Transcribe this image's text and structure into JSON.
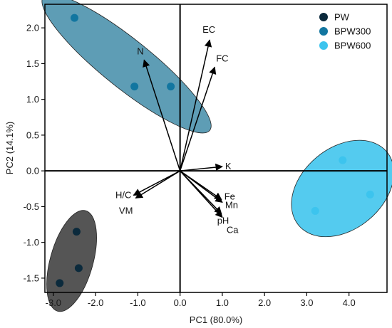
{
  "chart_data": {
    "type": "scatter",
    "title": "",
    "xlabel": "PC1 (80.0%)",
    "ylabel": "PC2 (14.1%)",
    "xlim": [
      -3.2,
      4.9
    ],
    "ylim": [
      -1.7,
      2.33
    ],
    "x_ticks": [
      -3.0,
      -2.0,
      -1.0,
      0.0,
      1.0,
      2.0,
      3.0,
      4.0
    ],
    "x_tick_labels": [
      "-3.0",
      "-2.0",
      "-1.0",
      "0.0",
      "1.0",
      "2.0",
      "3.0",
      "4.0"
    ],
    "y_ticks": [
      -1.5,
      -1.0,
      -0.5,
      0.0,
      0.5,
      1.0,
      1.5,
      2.0
    ],
    "y_tick_labels": [
      "-1.5",
      "-1.0",
      "-0.5",
      "0.0",
      "0.5",
      "1.0",
      "1.5",
      "2.0"
    ],
    "grid": false,
    "legend_position": "top-right",
    "series": [
      {
        "name": "PW",
        "color": "#0b2a3c",
        "ellipse_color": "#555555",
        "points": [
          [
            -2.45,
            -0.85
          ],
          [
            -2.4,
            -1.36
          ],
          [
            -2.85,
            -1.57
          ]
        ]
      },
      {
        "name": "BPW300",
        "color": "#1276a0",
        "ellipse_color": "#5e9db5",
        "points": [
          [
            -2.5,
            2.14
          ],
          [
            -1.08,
            1.18
          ],
          [
            -0.22,
            1.18
          ]
        ]
      },
      {
        "name": "BPW600",
        "color": "#3cc4ee",
        "ellipse_color": "#54cbef",
        "points": [
          [
            3.85,
            0.15
          ],
          [
            4.5,
            -0.33
          ],
          [
            3.2,
            -0.56
          ]
        ]
      }
    ],
    "loadings": [
      {
        "label": "EC",
        "x": 0.7,
        "y": 1.83
      },
      {
        "label": "FC",
        "x": 0.82,
        "y": 1.45
      },
      {
        "label": "N",
        "x": -0.85,
        "y": 1.55
      },
      {
        "label": "K",
        "x": 1.0,
        "y": 0.06
      },
      {
        "label": "Fe",
        "x": 0.98,
        "y": -0.4
      },
      {
        "label": "Mn",
        "x": 1.0,
        "y": -0.44
      },
      {
        "label": "pH",
        "x": 0.98,
        "y": -0.6
      },
      {
        "label": "Ca",
        "x": 1.0,
        "y": -0.65
      },
      {
        "label": "H/C",
        "x": -1.1,
        "y": -0.34
      },
      {
        "label": "VM",
        "x": -1.05,
        "y": -0.38
      }
    ]
  }
}
